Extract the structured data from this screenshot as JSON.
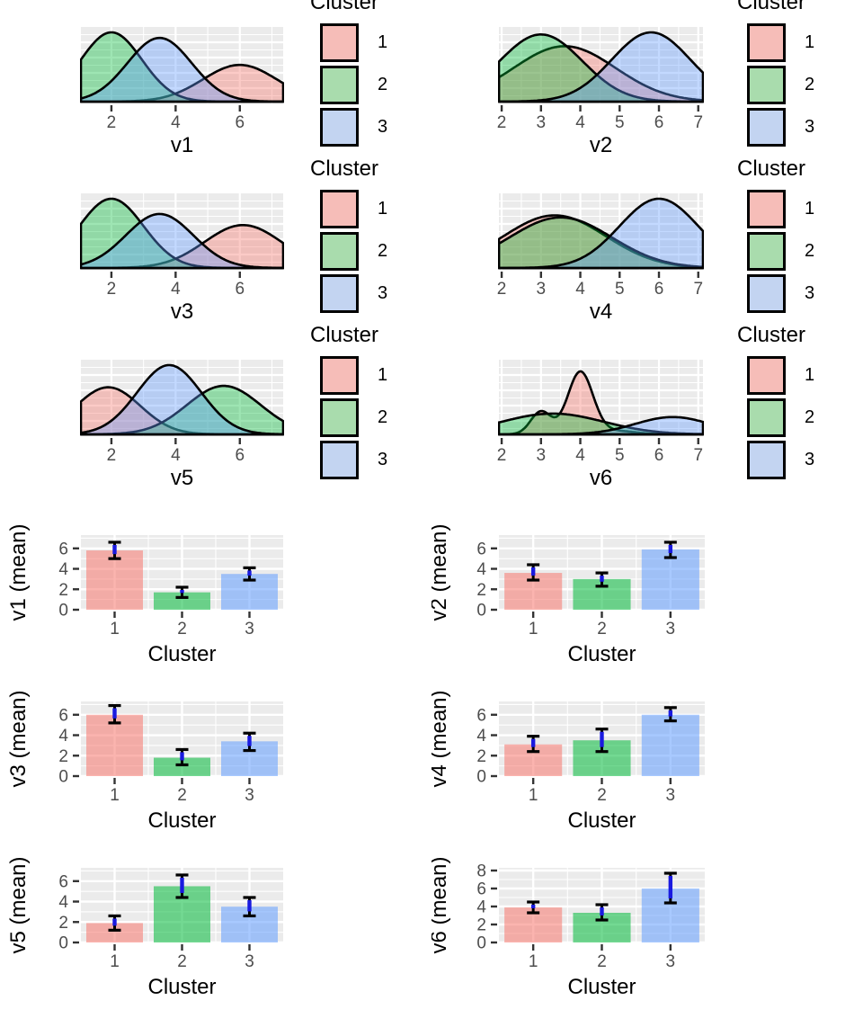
{
  "legend": {
    "title": "Cluster",
    "items": [
      {
        "label": "1",
        "color": "#F6BDB8"
      },
      {
        "label": "2",
        "color": "#A9DCAD"
      },
      {
        "label": "3",
        "color": "#C3D4F1"
      }
    ]
  },
  "colors": {
    "panel_bg": "#EBEBEB",
    "grid": "#FFFFFF",
    "curve_stroke": "#000000",
    "axis_text": "#4D4D4D",
    "axis_title": "#000000",
    "tick_mark": "#333333",
    "cluster_hues": [
      "#F8766D",
      "#00BA38",
      "#619CFF"
    ],
    "errorbar_blue": "#1A1AE0",
    "errorbar_cap": "#000000"
  },
  "chart_data": [
    {
      "type": "area",
      "kind": "density",
      "xlabel": "v1",
      "legend_title": "Cluster",
      "xlim": [
        1.05,
        7.35
      ],
      "x_ticks": [
        2,
        4,
        6
      ],
      "x_minor_ticks": [
        3,
        5,
        7
      ],
      "series": [
        {
          "name": "Cluster 1",
          "components": [
            {
              "mean": 6.0,
              "sd": 1.15,
              "amp": 0.53
            }
          ]
        },
        {
          "name": "Cluster 2",
          "components": [
            {
              "mean": 2.0,
              "sd": 0.95,
              "amp": 1.0
            }
          ]
        },
        {
          "name": "Cluster 3",
          "components": [
            {
              "mean": 3.5,
              "sd": 1.0,
              "amp": 0.92
            }
          ]
        }
      ]
    },
    {
      "type": "area",
      "kind": "density",
      "xlabel": "v2",
      "legend_title": "Cluster",
      "xlim": [
        1.93,
        7.12
      ],
      "x_ticks": [
        2,
        3,
        4,
        5,
        6,
        7
      ],
      "x_minor_ticks": [
        2.5,
        3.5,
        4.5,
        5.5,
        6.5
      ],
      "series": [
        {
          "name": "Cluster 1",
          "components": [
            {
              "mean": 3.6,
              "sd": 1.3,
              "amp": 0.8
            }
          ]
        },
        {
          "name": "Cluster 2",
          "components": [
            {
              "mean": 3.0,
              "sd": 1.05,
              "amp": 0.97
            }
          ]
        },
        {
          "name": "Cluster 3",
          "components": [
            {
              "mean": 5.8,
              "sd": 1.0,
              "amp": 1.0
            }
          ]
        }
      ]
    },
    {
      "type": "area",
      "kind": "density",
      "xlabel": "v3",
      "legend_title": "Cluster",
      "xlim": [
        1.05,
        7.35
      ],
      "x_ticks": [
        2,
        4,
        6
      ],
      "x_minor_ticks": [
        3,
        5,
        7
      ],
      "series": [
        {
          "name": "Cluster 1",
          "components": [
            {
              "mean": 6.1,
              "sd": 1.2,
              "amp": 0.62
            }
          ]
        },
        {
          "name": "Cluster 2",
          "components": [
            {
              "mean": 2.0,
              "sd": 1.0,
              "amp": 1.0
            }
          ]
        },
        {
          "name": "Cluster 3",
          "components": [
            {
              "mean": 3.5,
              "sd": 1.05,
              "amp": 0.78
            }
          ]
        }
      ]
    },
    {
      "type": "area",
      "kind": "density",
      "xlabel": "v4",
      "legend_title": "Cluster",
      "xlim": [
        1.93,
        7.12
      ],
      "x_ticks": [
        2,
        3,
        4,
        5,
        6,
        7
      ],
      "x_minor_ticks": [
        2.5,
        3.5,
        4.5,
        5.5,
        6.5
      ],
      "series": [
        {
          "name": "Cluster 1",
          "components": [
            {
              "mean": 3.35,
              "sd": 1.3,
              "amp": 0.76
            }
          ]
        },
        {
          "name": "Cluster 2",
          "components": [
            {
              "mean": 3.5,
              "sd": 1.3,
              "amp": 0.73
            }
          ]
        },
        {
          "name": "Cluster 3",
          "components": [
            {
              "mean": 6.0,
              "sd": 1.0,
              "amp": 1.0
            }
          ]
        }
      ]
    },
    {
      "type": "area",
      "kind": "density",
      "xlabel": "v5",
      "legend_title": "Cluster",
      "xlim": [
        1.05,
        7.35
      ],
      "x_ticks": [
        2,
        4,
        6
      ],
      "x_minor_ticks": [
        3,
        5,
        7
      ],
      "series": [
        {
          "name": "Cluster 1",
          "components": [
            {
              "mean": 1.9,
              "sd": 1.0,
              "amp": 0.68
            }
          ]
        },
        {
          "name": "Cluster 2",
          "components": [
            {
              "mean": 5.5,
              "sd": 1.15,
              "amp": 0.7
            }
          ]
        },
        {
          "name": "Cluster 3",
          "components": [
            {
              "mean": 3.8,
              "sd": 1.0,
              "amp": 1.0
            }
          ]
        }
      ]
    },
    {
      "type": "area",
      "kind": "density",
      "xlabel": "v6",
      "legend_title": "Cluster",
      "xlim": [
        1.93,
        7.12
      ],
      "x_ticks": [
        2,
        3,
        4,
        5,
        6,
        7
      ],
      "x_minor_ticks": [
        2.5,
        3.5,
        4.5,
        5.5,
        6.5
      ],
      "series": [
        {
          "name": "Cluster 1",
          "components": [
            {
              "mean": 3.0,
              "sd": 0.26,
              "amp": 0.33
            },
            {
              "mean": 4.0,
              "sd": 0.32,
              "amp": 0.9
            },
            {
              "mean": 4.9,
              "sd": 0.5,
              "amp": 0.05
            }
          ]
        },
        {
          "name": "Cluster 2",
          "components": [
            {
              "mean": 3.3,
              "sd": 1.3,
              "amp": 0.3
            }
          ]
        },
        {
          "name": "Cluster 3",
          "components": [
            {
              "mean": 6.35,
              "sd": 0.95,
              "amp": 0.25
            }
          ]
        }
      ]
    },
    {
      "type": "bar",
      "xlabel": "Cluster",
      "ylabel": "v1 (mean)",
      "categories": [
        "1",
        "2",
        "3"
      ],
      "values": [
        5.8,
        1.7,
        3.5
      ],
      "error_low": [
        5.0,
        1.2,
        2.9
      ],
      "error_high": [
        6.6,
        2.2,
        4.1
      ],
      "y_ticks": [
        0,
        2,
        4,
        6
      ],
      "ylim": [
        0,
        7.3
      ]
    },
    {
      "type": "bar",
      "xlabel": "Cluster",
      "ylabel": "v2 (mean)",
      "categories": [
        "1",
        "2",
        "3"
      ],
      "values": [
        3.6,
        3.0,
        5.9
      ],
      "error_low": [
        2.9,
        2.3,
        5.1
      ],
      "error_high": [
        4.4,
        3.6,
        6.6
      ],
      "y_ticks": [
        0,
        2,
        4,
        6
      ],
      "ylim": [
        0,
        7.3
      ]
    },
    {
      "type": "bar",
      "xlabel": "Cluster",
      "ylabel": "v3 (mean)",
      "categories": [
        "1",
        "2",
        "3"
      ],
      "values": [
        6.0,
        1.8,
        3.4
      ],
      "error_low": [
        5.2,
        1.1,
        2.5
      ],
      "error_high": [
        6.9,
        2.6,
        4.2
      ],
      "y_ticks": [
        0,
        2,
        4,
        6
      ],
      "ylim": [
        0,
        7.3
      ]
    },
    {
      "type": "bar",
      "xlabel": "Cluster",
      "ylabel": "v4 (mean)",
      "categories": [
        "1",
        "2",
        "3"
      ],
      "values": [
        3.1,
        3.5,
        6.0
      ],
      "error_low": [
        2.4,
        2.4,
        5.4
      ],
      "error_high": [
        3.9,
        4.6,
        6.7
      ],
      "y_ticks": [
        0,
        2,
        4,
        6
      ],
      "ylim": [
        0,
        7.3
      ]
    },
    {
      "type": "bar",
      "xlabel": "Cluster",
      "ylabel": "v5 (mean)",
      "categories": [
        "1",
        "2",
        "3"
      ],
      "values": [
        1.9,
        5.5,
        3.5
      ],
      "error_low": [
        1.2,
        4.4,
        2.6
      ],
      "error_high": [
        2.6,
        6.6,
        4.4
      ],
      "y_ticks": [
        0,
        2,
        4,
        6
      ],
      "ylim": [
        0,
        7.3
      ]
    },
    {
      "type": "bar",
      "xlabel": "Cluster",
      "ylabel": "v6 (mean)",
      "categories": [
        "1",
        "2",
        "3"
      ],
      "values": [
        3.9,
        3.3,
        6.0
      ],
      "error_low": [
        3.3,
        2.5,
        4.4
      ],
      "error_high": [
        4.5,
        4.2,
        7.7
      ],
      "y_ticks": [
        0,
        2,
        4,
        6,
        8
      ],
      "ylim": [
        0,
        8.3
      ]
    }
  ]
}
